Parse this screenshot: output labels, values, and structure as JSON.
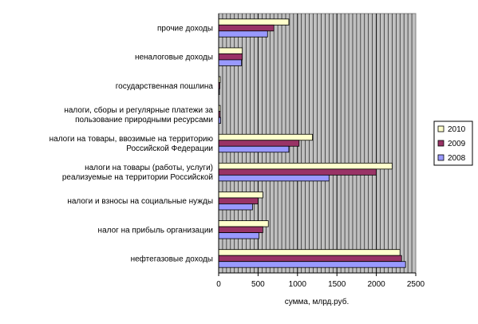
{
  "chart_data": {
    "type": "bar",
    "orientation": "horizontal",
    "title": "",
    "xlabel": "сумма, млрд.руб.",
    "ylabel": "",
    "xlim": [
      0,
      2500
    ],
    "xticks": [
      "0",
      "500",
      "1000",
      "1500",
      "2000",
      "2500"
    ],
    "grid": "vertical",
    "legend_position": "right",
    "categories": [
      "прочие доходы",
      "неналоговые доходы",
      "государственная пошлина",
      "налоги, сборы и регулярные платежи за пользование природными ресурсами",
      "налоги на товары, ввозимые на территорию Российской Федерации",
      "налоги на товары (работы, услуги) реализуемые на территории Российской",
      "налоги и взносы на социальные нужды",
      "налог на прибыль организации",
      "нефтегазовые доходы"
    ],
    "category_lines": [
      [
        "прочие доходы"
      ],
      [
        "неналоговые доходы"
      ],
      [
        "государственная пошлина"
      ],
      [
        "налоги, сборы и регулярные платежи за",
        "пользование природными ресурсами"
      ],
      [
        "налоги на товары, ввозимые на территорию",
        "Российской Федерации"
      ],
      [
        "налоги на товары (работы, услуги)",
        "реализуемые на территории Российской"
      ],
      [
        "налоги и взносы на социальные нужды"
      ],
      [
        "налог на прибыль организации"
      ],
      [
        "нефтегазовые доходы"
      ]
    ],
    "series": [
      {
        "name": "2010",
        "color": "#FFFFCC",
        "values": [
          890,
          300,
          20,
          20,
          1190,
          2200,
          560,
          630,
          2300
        ]
      },
      {
        "name": "2009",
        "color": "#993366",
        "values": [
          700,
          300,
          15,
          20,
          1020,
          2000,
          500,
          560,
          2320
        ]
      },
      {
        "name": "2008",
        "color": "#9999FF",
        "values": [
          620,
          290,
          10,
          25,
          890,
          1400,
          430,
          510,
          2370
        ]
      }
    ],
    "plot_background": "#C0C0C0"
  }
}
